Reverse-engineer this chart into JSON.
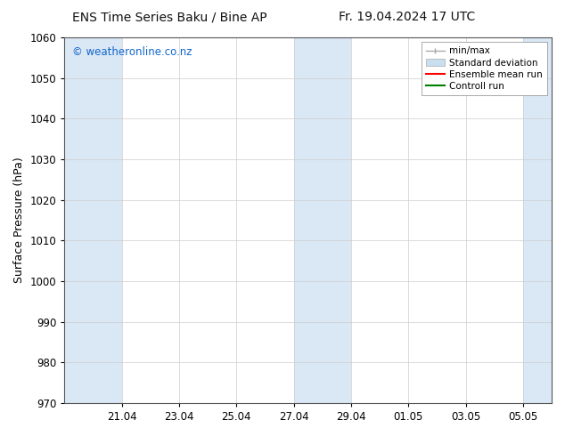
{
  "title_left": "ENS Time Series Baku / Bine AP",
  "title_right": "Fr. 19.04.2024 17 UTC",
  "ylabel": "Surface Pressure (hPa)",
  "ylim": [
    970,
    1060
  ],
  "yticks": [
    970,
    980,
    990,
    1000,
    1010,
    1020,
    1030,
    1040,
    1050,
    1060
  ],
  "xtick_labels": [
    "21.04",
    "23.04",
    "25.04",
    "27.04",
    "29.04",
    "01.05",
    "03.05",
    "05.05"
  ],
  "xtick_positions": [
    2,
    4,
    6,
    8,
    10,
    12,
    14,
    16
  ],
  "xlim": [
    0,
    17
  ],
  "shade_bands": [
    {
      "start": 0,
      "end": 2,
      "color": "#dae8f5"
    },
    {
      "start": 8,
      "end": 10,
      "color": "#dae8f5"
    },
    {
      "start": 16,
      "end": 17,
      "color": "#dae8f5"
    }
  ],
  "watermark": "© weatheronline.co.nz",
  "watermark_color": "#1166cc",
  "legend_items": [
    {
      "label": "min/max",
      "color": "#aaaaaa",
      "type": "errbar"
    },
    {
      "label": "Standard deviation",
      "color": "#c8dff0",
      "type": "bar"
    },
    {
      "label": "Ensemble mean run",
      "color": "#ff0000",
      "type": "line"
    },
    {
      "label": "Controll run",
      "color": "#008000",
      "type": "line"
    }
  ],
  "bg_color": "#ffffff",
  "plot_bg_color": "#ffffff",
  "title_fontsize": 10,
  "axis_label_fontsize": 9,
  "tick_fontsize": 8.5,
  "legend_fontsize": 7.5,
  "grid_color": "#cccccc",
  "spine_color": "#555555"
}
